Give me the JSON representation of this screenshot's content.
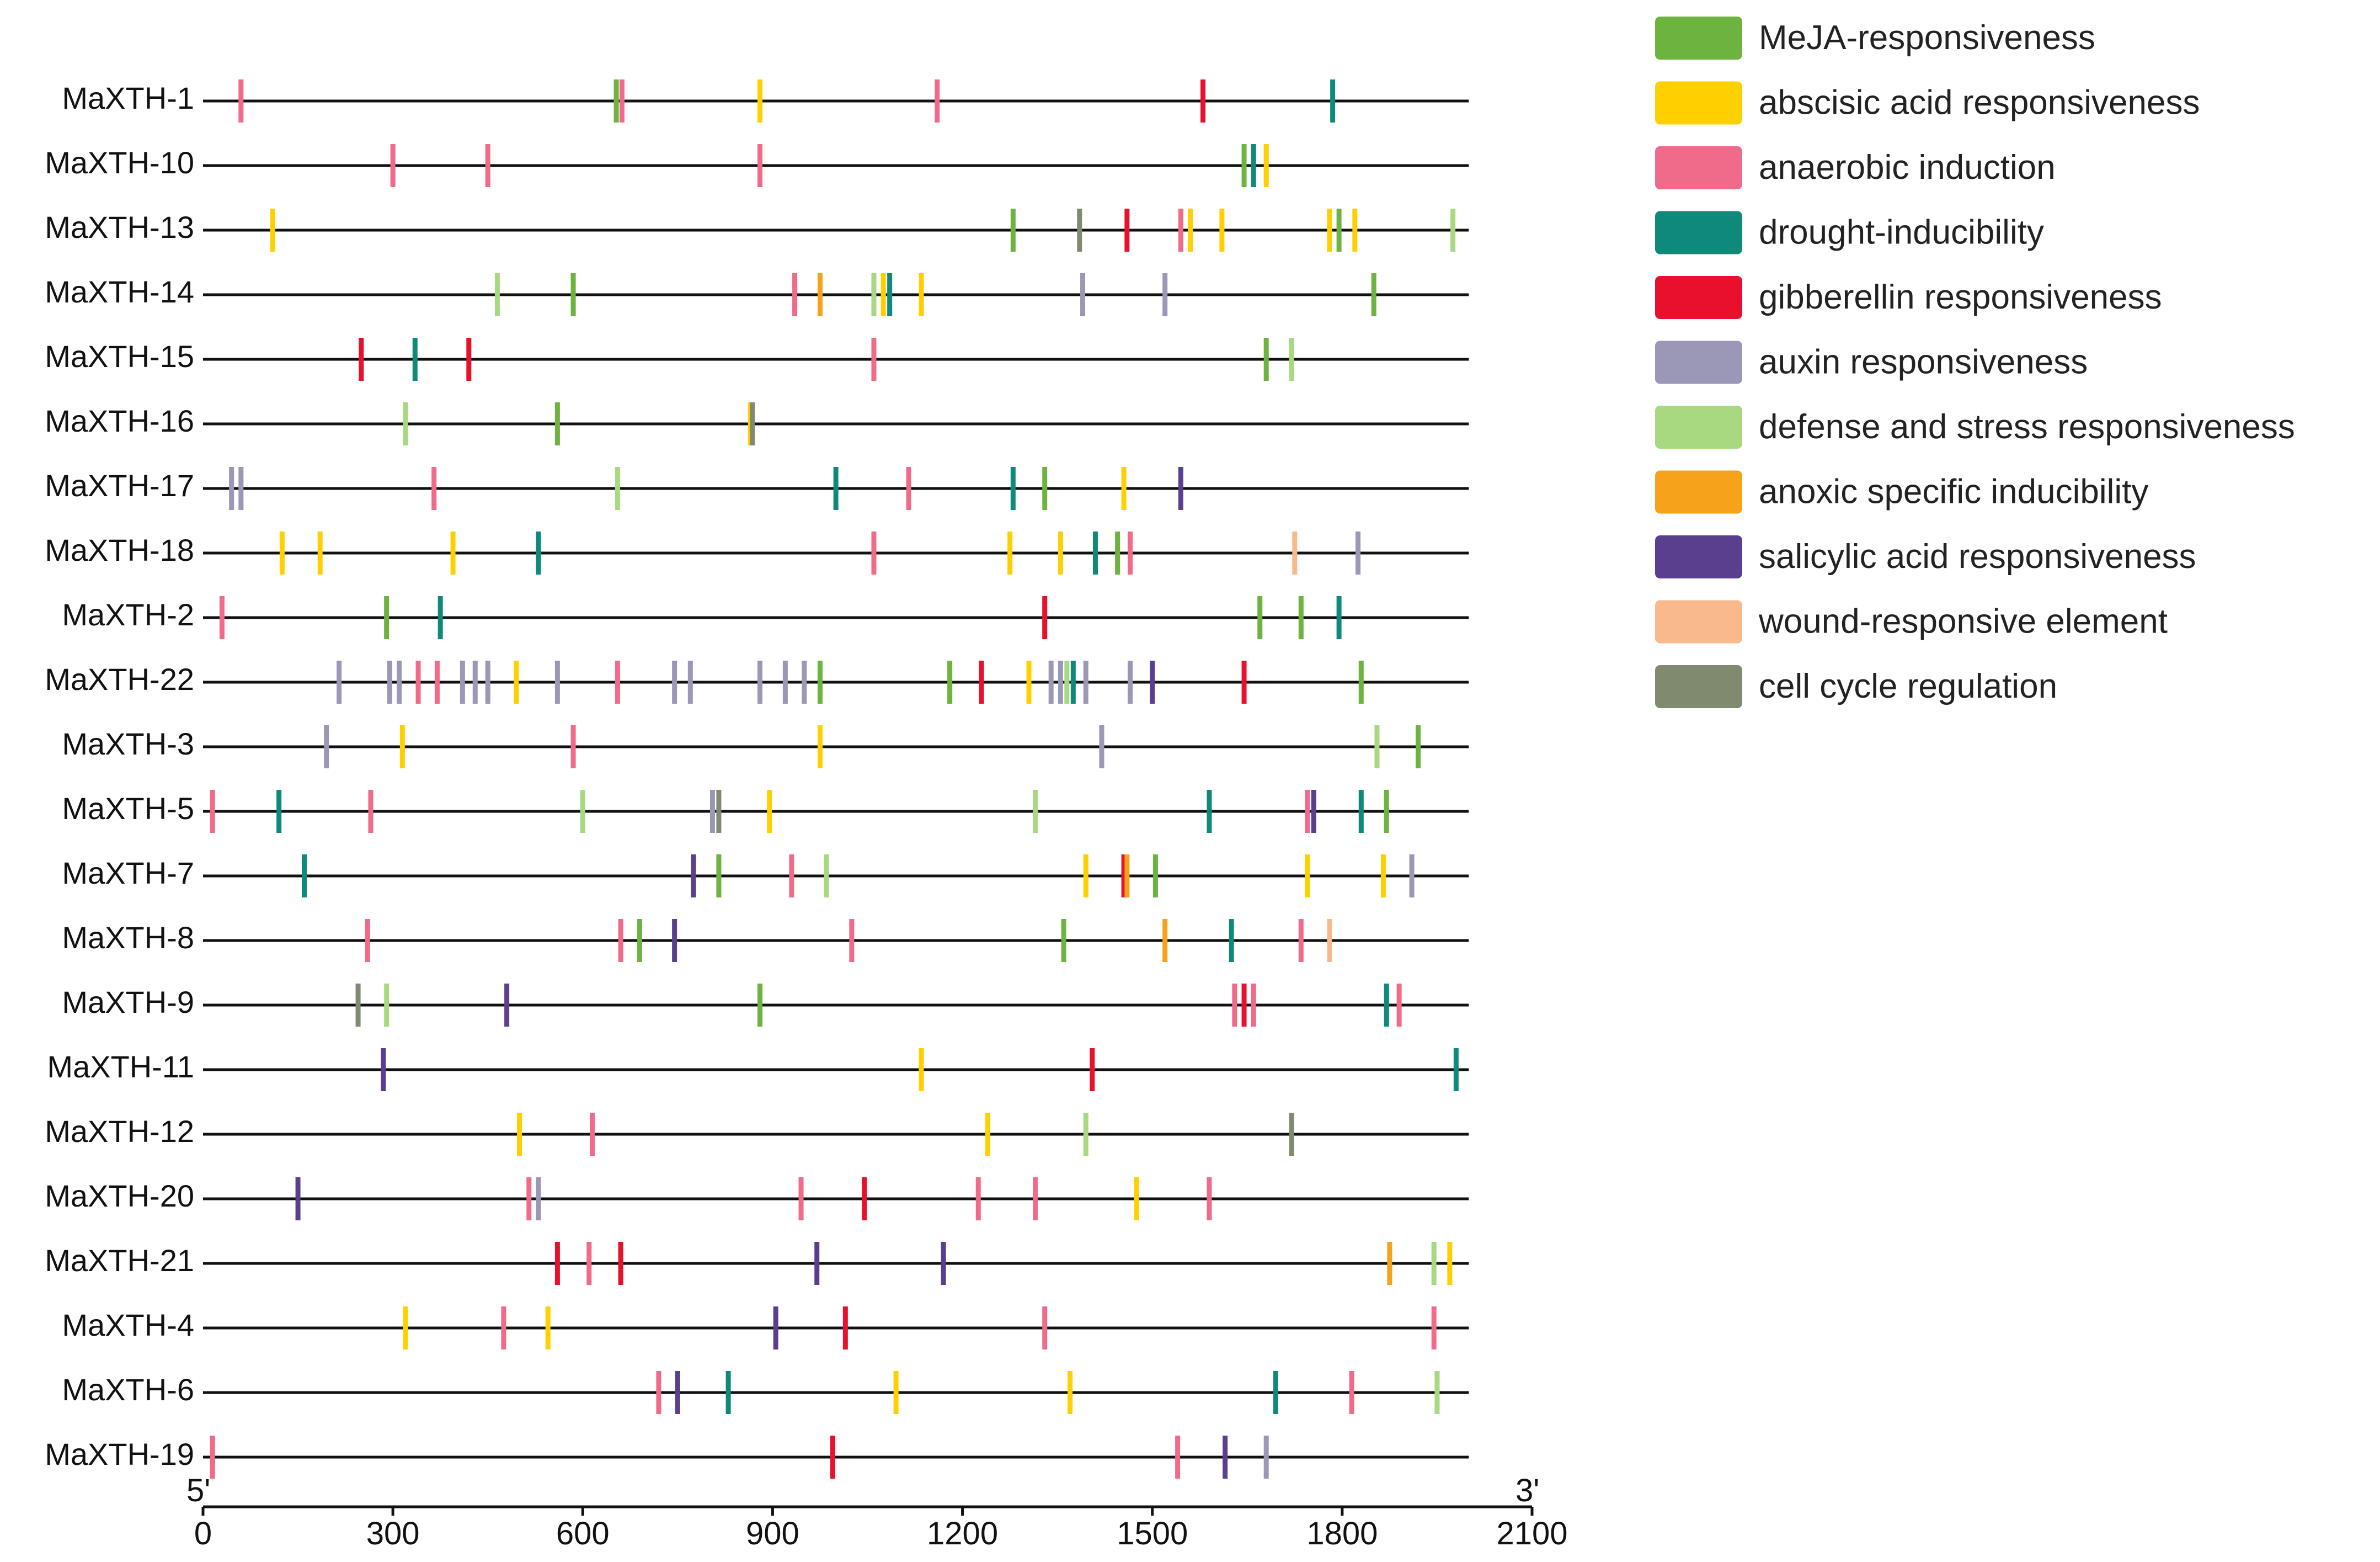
{
  "chart_data": {
    "type": "feature-map",
    "xlim": [
      0,
      2100
    ],
    "x_ticks": [
      0,
      300,
      600,
      900,
      1200,
      1500,
      1800,
      2100
    ],
    "x_tick_labels": [
      "0",
      "300",
      "600",
      "900",
      "1200",
      "1500",
      "1800",
      "2100"
    ],
    "start_label": "5'",
    "end_label": "3'",
    "legend": [
      {
        "key": "meja",
        "label": "MeJA-responsiveness",
        "color": "#6db33f"
      },
      {
        "key": "aba",
        "label": "abscisic acid responsiveness",
        "color": "#ffd000"
      },
      {
        "key": "anaerobic",
        "label": "anaerobic induction",
        "color": "#f06a8a"
      },
      {
        "key": "drought",
        "label": "drought-inducibility",
        "color": "#0f8a7a"
      },
      {
        "key": "gibberellin",
        "label": "gibberellin responsiveness",
        "color": "#e8102a"
      },
      {
        "key": "auxin",
        "label": "auxin responsiveness",
        "color": "#9a97b7"
      },
      {
        "key": "defense",
        "label": "defense and stress responsiveness",
        "color": "#a8d880"
      },
      {
        "key": "anoxic",
        "label": "anoxic specific inducibility",
        "color": "#f7a21b"
      },
      {
        "key": "salicylic",
        "label": "salicylic acid responsiveness",
        "color": "#5b3f8f"
      },
      {
        "key": "wound",
        "label": "wound-responsive element",
        "color": "#f9b98d"
      },
      {
        "key": "cellcycle",
        "label": "cell cycle regulation",
        "color": "#7f8a6f"
      }
    ],
    "genes": [
      {
        "name": "MaXTH-1",
        "length": 2000,
        "features": [
          {
            "pos": 60,
            "type": "anaerobic"
          },
          {
            "pos": 653,
            "type": "meja"
          },
          {
            "pos": 662,
            "type": "anaerobic"
          },
          {
            "pos": 880,
            "type": "aba"
          },
          {
            "pos": 1160,
            "type": "anaerobic"
          },
          {
            "pos": 1580,
            "type": "gibberellin"
          },
          {
            "pos": 1785,
            "type": "drought"
          }
        ]
      },
      {
        "name": "MaXTH-10",
        "length": 2000,
        "features": [
          {
            "pos": 300,
            "type": "anaerobic"
          },
          {
            "pos": 450,
            "type": "anaerobic"
          },
          {
            "pos": 880,
            "type": "anaerobic"
          },
          {
            "pos": 1645,
            "type": "meja"
          },
          {
            "pos": 1660,
            "type": "drought"
          },
          {
            "pos": 1680,
            "type": "aba"
          }
        ]
      },
      {
        "name": "MaXTH-13",
        "length": 2000,
        "features": [
          {
            "pos": 110,
            "type": "aba"
          },
          {
            "pos": 1280,
            "type": "meja"
          },
          {
            "pos": 1385,
            "type": "cellcycle"
          },
          {
            "pos": 1460,
            "type": "gibberellin"
          },
          {
            "pos": 1545,
            "type": "anaerobic"
          },
          {
            "pos": 1560,
            "type": "aba"
          },
          {
            "pos": 1610,
            "type": "aba"
          },
          {
            "pos": 1780,
            "type": "aba"
          },
          {
            "pos": 1795,
            "type": "meja"
          },
          {
            "pos": 1820,
            "type": "aba"
          },
          {
            "pos": 1975,
            "type": "defense"
          }
        ]
      },
      {
        "name": "MaXTH-14",
        "length": 2000,
        "features": [
          {
            "pos": 465,
            "type": "defense"
          },
          {
            "pos": 585,
            "type": "meja"
          },
          {
            "pos": 935,
            "type": "anaerobic"
          },
          {
            "pos": 975,
            "type": "anoxic"
          },
          {
            "pos": 1060,
            "type": "defense"
          },
          {
            "pos": 1075,
            "type": "aba"
          },
          {
            "pos": 1085,
            "type": "drought"
          },
          {
            "pos": 1135,
            "type": "aba"
          },
          {
            "pos": 1390,
            "type": "auxin"
          },
          {
            "pos": 1520,
            "type": "auxin"
          },
          {
            "pos": 1850,
            "type": "meja"
          }
        ]
      },
      {
        "name": "MaXTH-15",
        "length": 2000,
        "features": [
          {
            "pos": 250,
            "type": "gibberellin"
          },
          {
            "pos": 335,
            "type": "drought"
          },
          {
            "pos": 420,
            "type": "gibberellin"
          },
          {
            "pos": 1060,
            "type": "anaerobic"
          },
          {
            "pos": 1680,
            "type": "meja"
          },
          {
            "pos": 1720,
            "type": "defense"
          }
        ]
      },
      {
        "name": "MaXTH-16",
        "length": 2000,
        "features": [
          {
            "pos": 320,
            "type": "defense"
          },
          {
            "pos": 560,
            "type": "meja"
          },
          {
            "pos": 865,
            "type": "aba"
          },
          {
            "pos": 868,
            "type": "cellcycle"
          }
        ]
      },
      {
        "name": "MaXTH-17",
        "length": 2000,
        "features": [
          {
            "pos": 45,
            "type": "auxin"
          },
          {
            "pos": 60,
            "type": "auxin"
          },
          {
            "pos": 365,
            "type": "anaerobic"
          },
          {
            "pos": 655,
            "type": "defense"
          },
          {
            "pos": 1000,
            "type": "drought"
          },
          {
            "pos": 1115,
            "type": "anaerobic"
          },
          {
            "pos": 1280,
            "type": "drought"
          },
          {
            "pos": 1330,
            "type": "meja"
          },
          {
            "pos": 1455,
            "type": "aba"
          },
          {
            "pos": 1545,
            "type": "salicylic"
          }
        ]
      },
      {
        "name": "MaXTH-18",
        "length": 2000,
        "features": [
          {
            "pos": 125,
            "type": "aba"
          },
          {
            "pos": 185,
            "type": "aba"
          },
          {
            "pos": 395,
            "type": "aba"
          },
          {
            "pos": 530,
            "type": "drought"
          },
          {
            "pos": 1060,
            "type": "anaerobic"
          },
          {
            "pos": 1275,
            "type": "aba"
          },
          {
            "pos": 1355,
            "type": "aba"
          },
          {
            "pos": 1410,
            "type": "drought"
          },
          {
            "pos": 1445,
            "type": "meja"
          },
          {
            "pos": 1465,
            "type": "anaerobic"
          },
          {
            "pos": 1725,
            "type": "wound"
          },
          {
            "pos": 1825,
            "type": "auxin"
          }
        ]
      },
      {
        "name": "MaXTH-2",
        "length": 2000,
        "features": [
          {
            "pos": 30,
            "type": "anaerobic"
          },
          {
            "pos": 290,
            "type": "meja"
          },
          {
            "pos": 375,
            "type": "drought"
          },
          {
            "pos": 1330,
            "type": "gibberellin"
          },
          {
            "pos": 1670,
            "type": "meja"
          },
          {
            "pos": 1735,
            "type": "meja"
          },
          {
            "pos": 1795,
            "type": "drought"
          }
        ]
      },
      {
        "name": "MaXTH-22",
        "length": 2000,
        "features": [
          {
            "pos": 215,
            "type": "auxin"
          },
          {
            "pos": 295,
            "type": "auxin"
          },
          {
            "pos": 310,
            "type": "auxin"
          },
          {
            "pos": 340,
            "type": "anaerobic"
          },
          {
            "pos": 370,
            "type": "anaerobic"
          },
          {
            "pos": 410,
            "type": "auxin"
          },
          {
            "pos": 430,
            "type": "auxin"
          },
          {
            "pos": 450,
            "type": "auxin"
          },
          {
            "pos": 495,
            "type": "aba"
          },
          {
            "pos": 560,
            "type": "auxin"
          },
          {
            "pos": 655,
            "type": "anaerobic"
          },
          {
            "pos": 745,
            "type": "auxin"
          },
          {
            "pos": 770,
            "type": "auxin"
          },
          {
            "pos": 880,
            "type": "auxin"
          },
          {
            "pos": 920,
            "type": "auxin"
          },
          {
            "pos": 950,
            "type": "auxin"
          },
          {
            "pos": 975,
            "type": "meja"
          },
          {
            "pos": 1180,
            "type": "meja"
          },
          {
            "pos": 1230,
            "type": "gibberellin"
          },
          {
            "pos": 1305,
            "type": "aba"
          },
          {
            "pos": 1340,
            "type": "auxin"
          },
          {
            "pos": 1355,
            "type": "auxin"
          },
          {
            "pos": 1365,
            "type": "defense"
          },
          {
            "pos": 1375,
            "type": "drought"
          },
          {
            "pos": 1395,
            "type": "auxin"
          },
          {
            "pos": 1465,
            "type": "auxin"
          },
          {
            "pos": 1500,
            "type": "salicylic"
          },
          {
            "pos": 1645,
            "type": "gibberellin"
          },
          {
            "pos": 1830,
            "type": "meja"
          }
        ]
      },
      {
        "name": "MaXTH-3",
        "length": 2000,
        "features": [
          {
            "pos": 195,
            "type": "auxin"
          },
          {
            "pos": 315,
            "type": "aba"
          },
          {
            "pos": 585,
            "type": "anaerobic"
          },
          {
            "pos": 975,
            "type": "aba"
          },
          {
            "pos": 1420,
            "type": "auxin"
          },
          {
            "pos": 1855,
            "type": "defense"
          },
          {
            "pos": 1920,
            "type": "meja"
          }
        ]
      },
      {
        "name": "MaXTH-5",
        "length": 2000,
        "features": [
          {
            "pos": 15,
            "type": "anaerobic"
          },
          {
            "pos": 120,
            "type": "drought"
          },
          {
            "pos": 265,
            "type": "anaerobic"
          },
          {
            "pos": 600,
            "type": "defense"
          },
          {
            "pos": 805,
            "type": "auxin"
          },
          {
            "pos": 815,
            "type": "cellcycle"
          },
          {
            "pos": 895,
            "type": "aba"
          },
          {
            "pos": 1315,
            "type": "defense"
          },
          {
            "pos": 1590,
            "type": "drought"
          },
          {
            "pos": 1745,
            "type": "anaerobic"
          },
          {
            "pos": 1755,
            "type": "salicylic"
          },
          {
            "pos": 1830,
            "type": "drought"
          },
          {
            "pos": 1870,
            "type": "meja"
          }
        ]
      },
      {
        "name": "MaXTH-7",
        "length": 2000,
        "features": [
          {
            "pos": 160,
            "type": "drought"
          },
          {
            "pos": 775,
            "type": "salicylic"
          },
          {
            "pos": 815,
            "type": "meja"
          },
          {
            "pos": 930,
            "type": "anaerobic"
          },
          {
            "pos": 985,
            "type": "defense"
          },
          {
            "pos": 1395,
            "type": "aba"
          },
          {
            "pos": 1455,
            "type": "gibberellin"
          },
          {
            "pos": 1460,
            "type": "anoxic"
          },
          {
            "pos": 1505,
            "type": "meja"
          },
          {
            "pos": 1745,
            "type": "aba"
          },
          {
            "pos": 1865,
            "type": "aba"
          },
          {
            "pos": 1910,
            "type": "auxin"
          }
        ]
      },
      {
        "name": "MaXTH-8",
        "length": 2000,
        "features": [
          {
            "pos": 260,
            "type": "anaerobic"
          },
          {
            "pos": 660,
            "type": "anaerobic"
          },
          {
            "pos": 690,
            "type": "meja"
          },
          {
            "pos": 745,
            "type": "salicylic"
          },
          {
            "pos": 1025,
            "type": "anaerobic"
          },
          {
            "pos": 1360,
            "type": "meja"
          },
          {
            "pos": 1520,
            "type": "anoxic"
          },
          {
            "pos": 1625,
            "type": "drought"
          },
          {
            "pos": 1735,
            "type": "anaerobic"
          },
          {
            "pos": 1780,
            "type": "wound"
          }
        ]
      },
      {
        "name": "MaXTH-9",
        "length": 2000,
        "features": [
          {
            "pos": 245,
            "type": "cellcycle"
          },
          {
            "pos": 290,
            "type": "defense"
          },
          {
            "pos": 480,
            "type": "salicylic"
          },
          {
            "pos": 880,
            "type": "meja"
          },
          {
            "pos": 1630,
            "type": "anaerobic"
          },
          {
            "pos": 1645,
            "type": "gibberellin"
          },
          {
            "pos": 1660,
            "type": "anaerobic"
          },
          {
            "pos": 1870,
            "type": "drought"
          },
          {
            "pos": 1890,
            "type": "anaerobic"
          }
        ]
      },
      {
        "name": "MaXTH-11",
        "length": 2000,
        "features": [
          {
            "pos": 285,
            "type": "salicylic"
          },
          {
            "pos": 1135,
            "type": "aba"
          },
          {
            "pos": 1405,
            "type": "gibberellin"
          },
          {
            "pos": 1980,
            "type": "drought"
          }
        ]
      },
      {
        "name": "MaXTH-12",
        "length": 2000,
        "features": [
          {
            "pos": 500,
            "type": "aba"
          },
          {
            "pos": 615,
            "type": "anaerobic"
          },
          {
            "pos": 1240,
            "type": "aba"
          },
          {
            "pos": 1395,
            "type": "defense"
          },
          {
            "pos": 1720,
            "type": "cellcycle"
          }
        ]
      },
      {
        "name": "MaXTH-20",
        "length": 2000,
        "features": [
          {
            "pos": 150,
            "type": "salicylic"
          },
          {
            "pos": 515,
            "type": "anaerobic"
          },
          {
            "pos": 530,
            "type": "auxin"
          },
          {
            "pos": 945,
            "type": "anaerobic"
          },
          {
            "pos": 1045,
            "type": "gibberellin"
          },
          {
            "pos": 1225,
            "type": "anaerobic"
          },
          {
            "pos": 1315,
            "type": "anaerobic"
          },
          {
            "pos": 1475,
            "type": "aba"
          },
          {
            "pos": 1590,
            "type": "anaerobic"
          }
        ]
      },
      {
        "name": "MaXTH-21",
        "length": 2000,
        "features": [
          {
            "pos": 560,
            "type": "gibberellin"
          },
          {
            "pos": 610,
            "type": "anaerobic"
          },
          {
            "pos": 660,
            "type": "gibberellin"
          },
          {
            "pos": 970,
            "type": "salicylic"
          },
          {
            "pos": 1170,
            "type": "salicylic"
          },
          {
            "pos": 1875,
            "type": "anoxic"
          },
          {
            "pos": 1945,
            "type": "defense"
          },
          {
            "pos": 1970,
            "type": "aba"
          }
        ]
      },
      {
        "name": "MaXTH-4",
        "length": 2000,
        "features": [
          {
            "pos": 320,
            "type": "aba"
          },
          {
            "pos": 475,
            "type": "anaerobic"
          },
          {
            "pos": 545,
            "type": "aba"
          },
          {
            "pos": 905,
            "type": "salicylic"
          },
          {
            "pos": 1015,
            "type": "gibberellin"
          },
          {
            "pos": 1330,
            "type": "anaerobic"
          },
          {
            "pos": 1945,
            "type": "anaerobic"
          }
        ]
      },
      {
        "name": "MaXTH-6",
        "length": 2000,
        "features": [
          {
            "pos": 720,
            "type": "anaerobic"
          },
          {
            "pos": 750,
            "type": "salicylic"
          },
          {
            "pos": 830,
            "type": "drought"
          },
          {
            "pos": 1095,
            "type": "aba"
          },
          {
            "pos": 1370,
            "type": "aba"
          },
          {
            "pos": 1695,
            "type": "drought"
          },
          {
            "pos": 1815,
            "type": "anaerobic"
          },
          {
            "pos": 1950,
            "type": "defense"
          }
        ]
      },
      {
        "name": "MaXTH-19",
        "length": 2000,
        "features": [
          {
            "pos": 15,
            "type": "anaerobic"
          },
          {
            "pos": 995,
            "type": "gibberellin"
          },
          {
            "pos": 1540,
            "type": "anaerobic"
          },
          {
            "pos": 1615,
            "type": "salicylic"
          },
          {
            "pos": 1680,
            "type": "auxin"
          }
        ]
      }
    ]
  }
}
